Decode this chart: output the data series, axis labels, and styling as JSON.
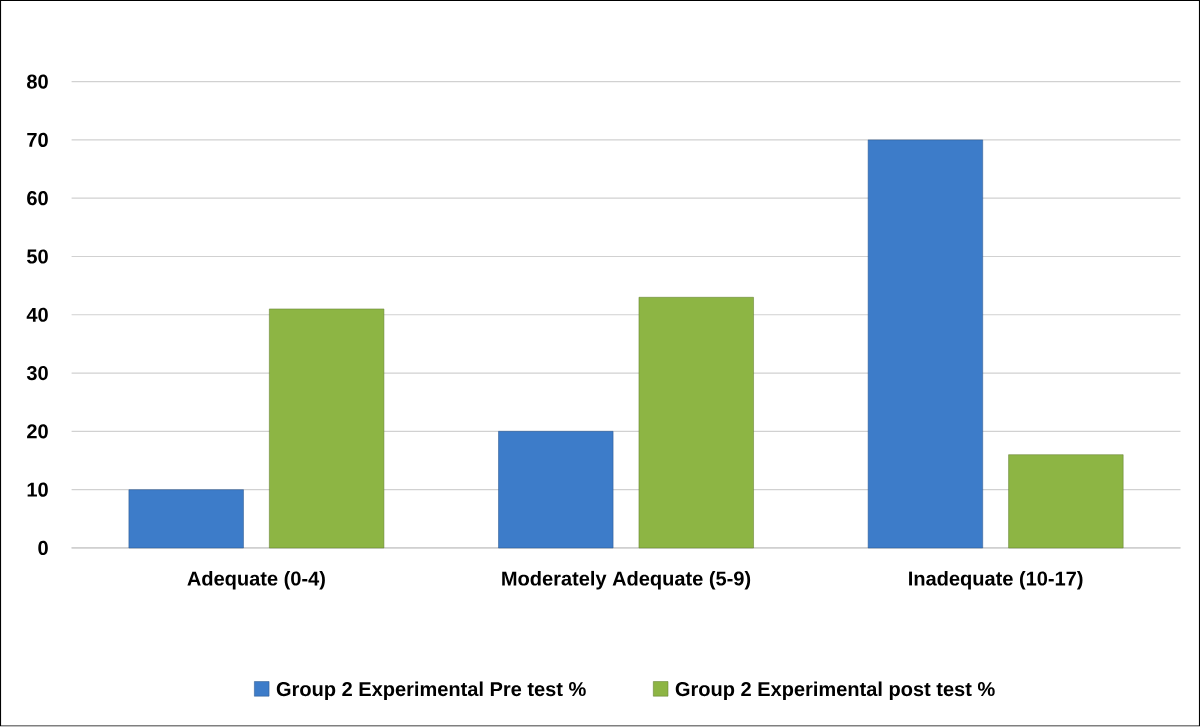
{
  "chart_data": {
    "type": "bar",
    "categories": [
      "Adequate (0-4)",
      "Moderately Adequate (5-9)",
      "Inadequate (10-17)"
    ],
    "series": [
      {
        "name": "Group 2 Experimental Pre test %",
        "color": "#3d7cc9",
        "values": [
          10,
          20,
          70
        ]
      },
      {
        "name": "Group 2 Experimental post test %",
        "color": "#8db544",
        "values": [
          41,
          43,
          16
        ]
      }
    ],
    "ylim": [
      0,
      80
    ],
    "yticks": [
      0,
      10,
      20,
      30,
      40,
      50,
      60,
      70,
      80
    ],
    "grid": "y",
    "legend": "bottom"
  }
}
